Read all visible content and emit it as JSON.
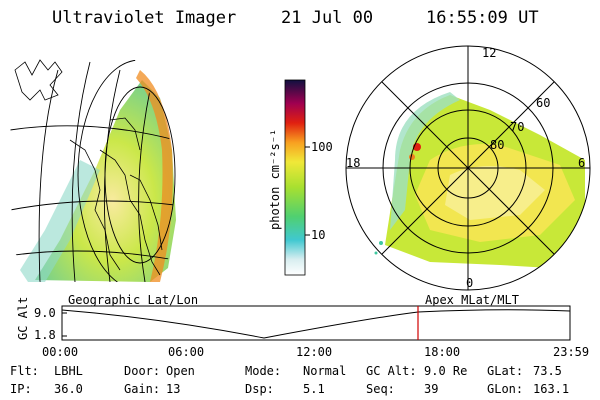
{
  "header": {
    "instrument": "Ultraviolet Imager",
    "date": "21 Jul 00",
    "time": "16:55:09 UT"
  },
  "colorbar": {
    "label": "photon cm⁻²s⁻¹",
    "ticks": [
      "100",
      "10"
    ]
  },
  "polar_plot": {
    "lat_labels": [
      "80",
      "70",
      "60"
    ],
    "mlt_labels": [
      "12",
      "18",
      "6",
      "0"
    ]
  },
  "panel_labels": {
    "left": "Geographic Lat/Lon",
    "right": "Apex MLat/MLT"
  },
  "altitude_plot": {
    "ylabel": "GC Alt",
    "yticks": [
      "9.0",
      "1.8"
    ],
    "xticks": [
      "00:00",
      "06:00",
      "12:00",
      "18:00",
      "23:59"
    ],
    "current_time_marker": "16:55",
    "marker_color": "#d00000"
  },
  "params": {
    "row1": [
      {
        "label": "Flt:",
        "value": "LBHL"
      },
      {
        "label": "Door:",
        "value": "Open"
      },
      {
        "label": "Mode:",
        "value": "Normal"
      },
      {
        "label": "GC Alt:",
        "value": "9.0 Re"
      },
      {
        "label": "GLat:",
        "value": "73.5"
      }
    ],
    "row2": [
      {
        "label": "IP:",
        "value": "36.0"
      },
      {
        "label": "Gain:",
        "value": "13"
      },
      {
        "label": "Dsp:",
        "value": "5.1"
      },
      {
        "label": "Seq:",
        "value": "39"
      },
      {
        "label": "GLon:",
        "value": "163.1"
      }
    ]
  },
  "colors": {
    "aurora_low": "#d6f0e8",
    "aurora_mid": "#b6e23a",
    "aurora_high": "#f4e640",
    "aurora_peak": "#f0a020"
  }
}
